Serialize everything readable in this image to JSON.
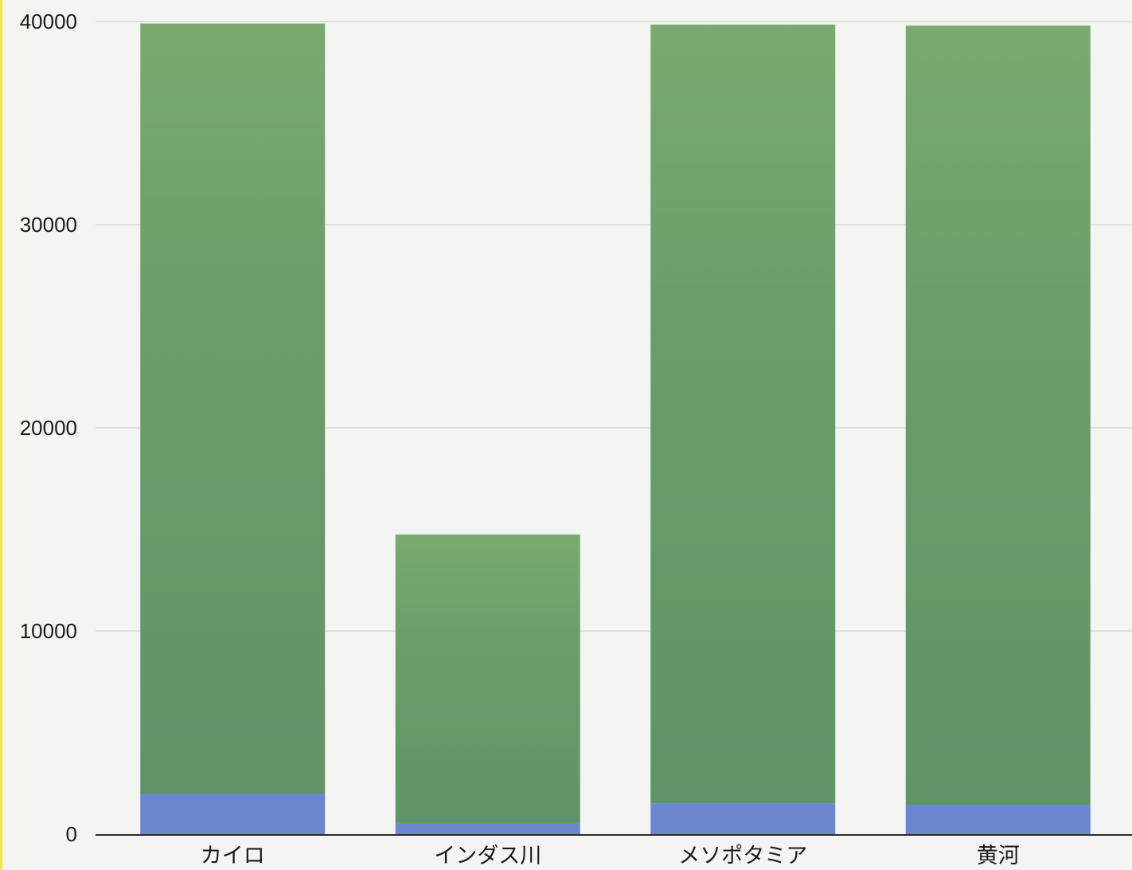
{
  "chart_data": {
    "type": "bar",
    "stacked": true,
    "categories": [
      "カイロ",
      "インダス川",
      "メソポタミア",
      "黄河"
    ],
    "series": [
      {
        "color": "#6a86cf",
        "values": [
          2000,
          550,
          1500,
          1450
        ]
      },
      {
        "color": "#6a9e6c",
        "values": [
          37900,
          14200,
          38350,
          38350
        ]
      }
    ],
    "ylim": [
      0,
      40000
    ],
    "yticks": [
      0,
      10000,
      20000,
      30000,
      40000
    ],
    "ytick_labels": [
      "0",
      "10000",
      "20000",
      "30000",
      "40000"
    ],
    "grid": true,
    "legend": "none",
    "title": "",
    "xlabel": "",
    "ylabel": ""
  }
}
